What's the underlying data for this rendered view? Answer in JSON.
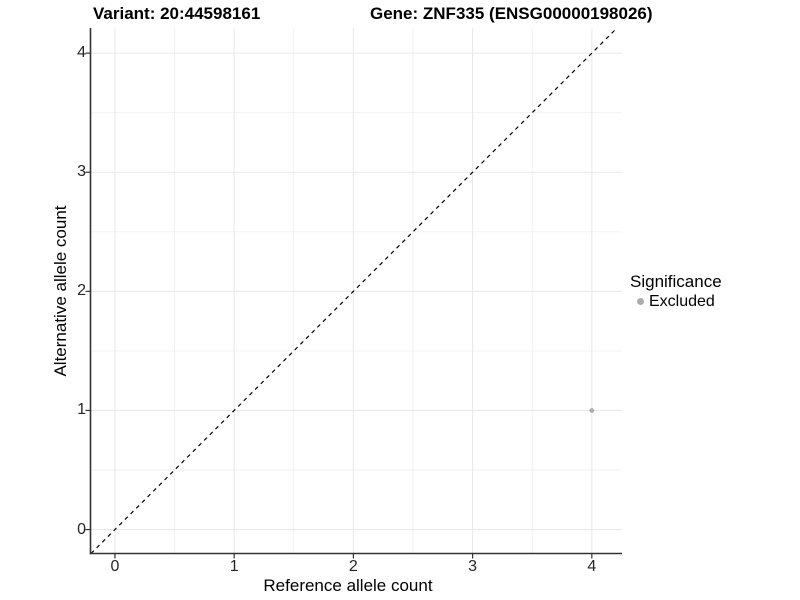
{
  "titles": {
    "variant": "Variant: 20:44598161",
    "gene": "Gene: ZNF335 (ENSG00000198026)"
  },
  "chart_data": {
    "type": "scatter",
    "xlabel": "Reference allele count",
    "ylabel": "Alternative allele count",
    "xlim": [
      -0.205,
      4.253
    ],
    "ylim": [
      -0.201,
      4.211
    ],
    "xticks": [
      0,
      1,
      2,
      3,
      4
    ],
    "yticks": [
      0,
      1,
      2,
      3,
      4
    ],
    "minor_grid_interval": 0.5,
    "grid": "major+minor",
    "series": [
      {
        "name": "Excluded",
        "color": "#ababab",
        "points": [
          {
            "x": 4,
            "y": 1
          }
        ]
      }
    ],
    "reference_line": {
      "kind": "identity y=x",
      "style": "dashed",
      "color": "#000000"
    },
    "legend": {
      "title": "Significance",
      "position": "right",
      "items": [
        {
          "label": "Excluded",
          "color": "#ababab"
        }
      ]
    },
    "colors": {
      "major_grid": "#e9e9e9",
      "minor_grid": "#f0f0f0",
      "axis_line": "#333333",
      "tick_mark": "#333333",
      "point": "#ababab"
    }
  }
}
